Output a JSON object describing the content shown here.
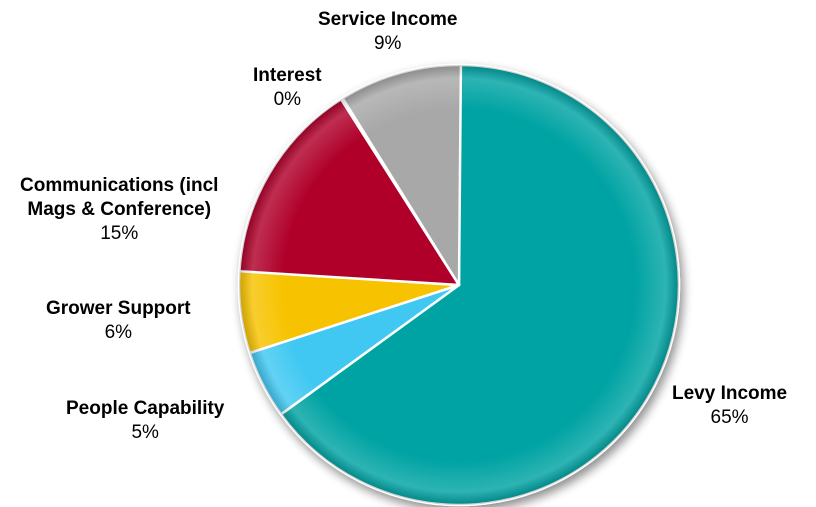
{
  "chart_data": {
    "type": "pie",
    "title": "",
    "start_angle_deg": 0,
    "direction": "clockwise",
    "slices": [
      {
        "name": "Levy Income",
        "value": 65,
        "label": "65%",
        "color": "#05A3A3"
      },
      {
        "name": "People Capability",
        "value": 5,
        "label": "5%",
        "color": "#3FC8F2"
      },
      {
        "name": "Grower Support",
        "value": 6,
        "label": "6%",
        "color": "#F7C300"
      },
      {
        "name": "Communications (incl Mags & Conference)",
        "name_lines": [
          "Communications (incl",
          "Mags & Conference)"
        ],
        "value": 15,
        "label": "15%",
        "color": "#B0062B"
      },
      {
        "name": "Interest",
        "value": 0,
        "label": "0%",
        "color": "#E0E0E0"
      },
      {
        "name": "Service Income",
        "value": 9,
        "label": "9%",
        "color": "#A8A8A8"
      }
    ]
  }
}
